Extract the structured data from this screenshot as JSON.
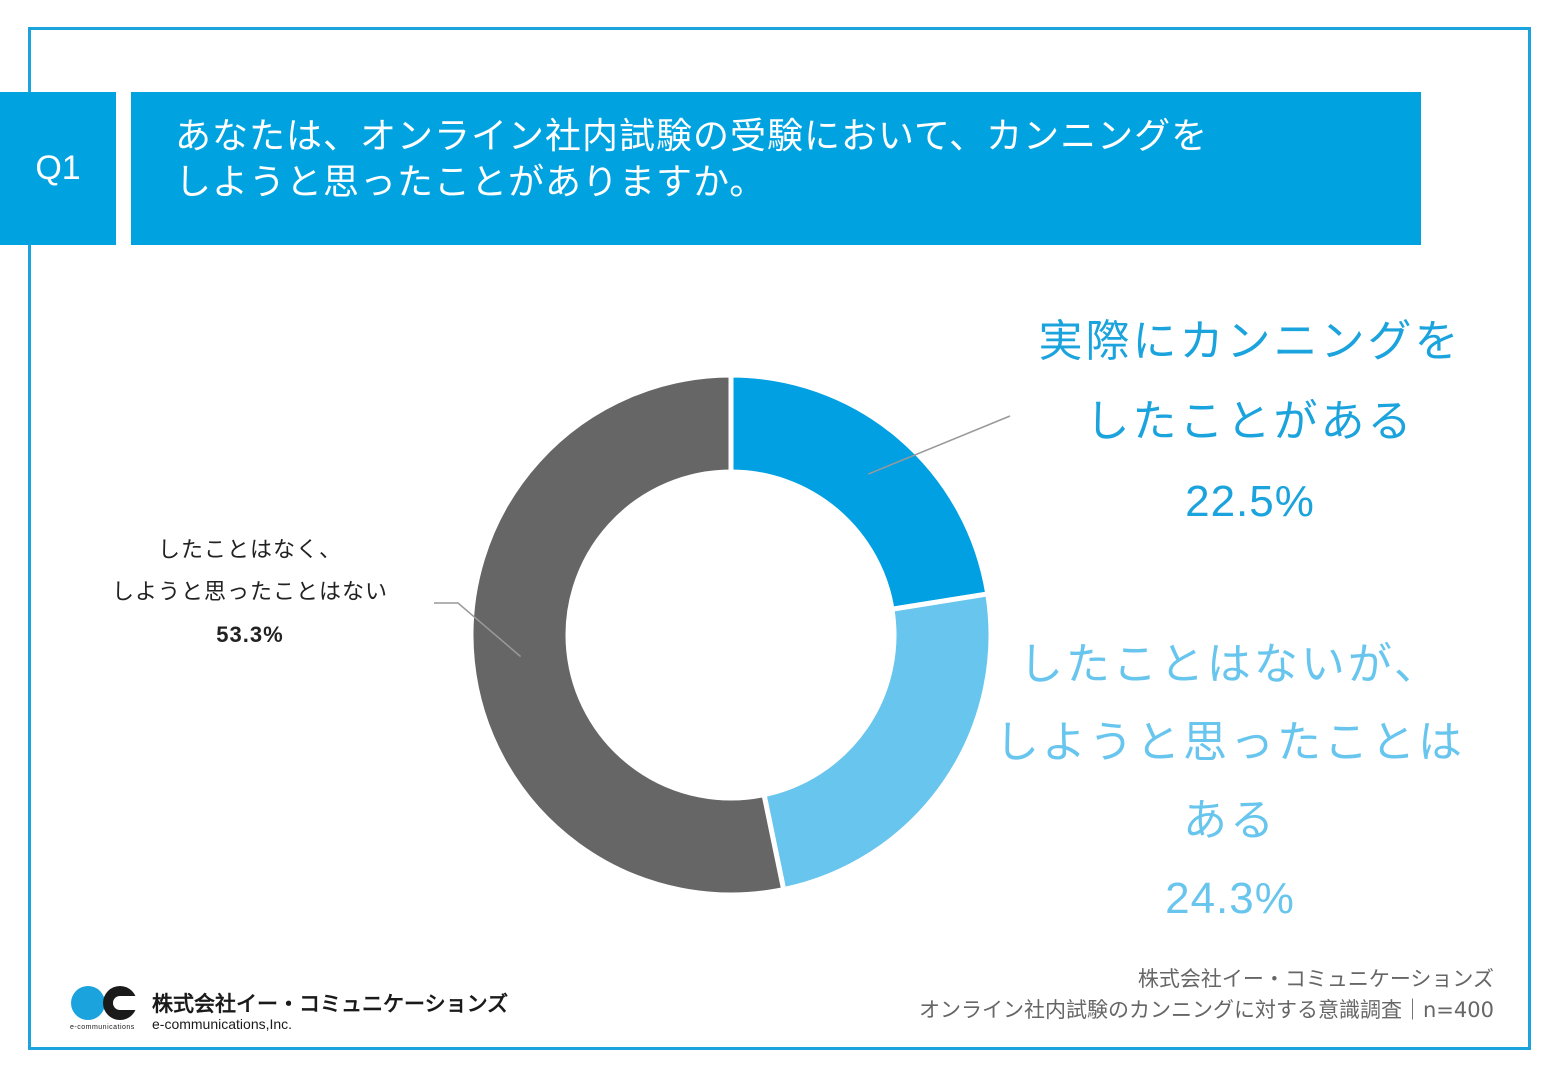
{
  "question": {
    "badge": "Q1",
    "line1": "あなたは、オンライン社内試験の受験において、カンニングを",
    "line2": "しようと思ったことがありますか。"
  },
  "chart_data": {
    "type": "pie",
    "donut": true,
    "slices": [
      {
        "label": "実際にカンニングをしたことがある",
        "value": 22.5,
        "color": "#00a0e3"
      },
      {
        "label": "したことはないが、しようと思ったことはある",
        "value": 24.3,
        "color": "#67c5ee"
      },
      {
        "label": "したことはなく、しようと思ったことはない",
        "value": 53.3,
        "color": "#666666"
      }
    ]
  },
  "labels": {
    "a": {
      "line1": "実際にカンニングを",
      "line2": "したことがある",
      "pct": "22.5%"
    },
    "b": {
      "line1": "したことはないが、",
      "line2": "しようと思ったことは",
      "line3": "ある",
      "pct": "24.3%"
    },
    "c": {
      "line1": "したことはなく、",
      "line2": "しようと思ったことはない",
      "pct": "53.3%"
    }
  },
  "footer": {
    "line1": "株式会社イー・コミュニケーションズ",
    "line2": "オンライン社内試験のカンニングに対する意識調査｜n=400"
  },
  "logo": {
    "name": "株式会社イー・コミュニケーションズ",
    "en": "e-communications,Inc.",
    "small": "e-communications"
  }
}
